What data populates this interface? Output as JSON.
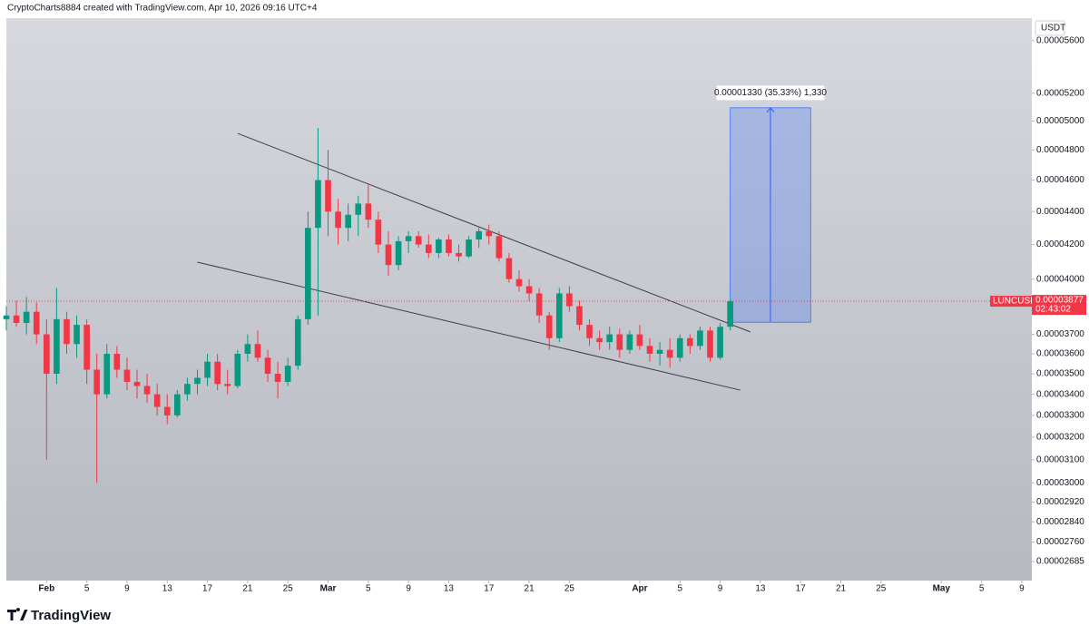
{
  "chart_data": {
    "type": "candlestick",
    "header": "CryptoCharts8884 created with TradingView.com, Apr 10, 2026 09:16 UTC+4",
    "currency": "USDT",
    "symbol": "LUNCUSDT",
    "countdown": "02:43:02",
    "brand": "TradingView",
    "up_color": "#089981",
    "down_color": "#f23645",
    "log": true,
    "ylim": [
      2.614e-05,
      5.781e-05
    ],
    "yticks": [
      {
        "value": 5.6e-05,
        "label": "0.00005600"
      },
      {
        "value": 5.2e-05,
        "label": "0.00005200"
      },
      {
        "value": 5e-05,
        "label": "0.00005000"
      },
      {
        "value": 4.8e-05,
        "label": "0.00004800"
      },
      {
        "value": 4.6e-05,
        "label": "0.00004600"
      },
      {
        "value": 4.4e-05,
        "label": "0.00004400"
      },
      {
        "value": 4.2e-05,
        "label": "0.00004200"
      },
      {
        "value": 4e-05,
        "label": "0.00004000"
      },
      {
        "value": 3.7e-05,
        "label": "0.00003700"
      },
      {
        "value": 3.6e-05,
        "label": "0.00003600"
      },
      {
        "value": 3.5e-05,
        "label": "0.00003500"
      },
      {
        "value": 3.4e-05,
        "label": "0.00003400"
      },
      {
        "value": 3.3e-05,
        "label": "0.00003300"
      },
      {
        "value": 3.2e-05,
        "label": "0.00003200"
      },
      {
        "value": 3.1e-05,
        "label": "0.00003100"
      },
      {
        "value": 3e-05,
        "label": "0.00003000"
      },
      {
        "value": 2.92e-05,
        "label": "0.00002920"
      },
      {
        "value": 2.84e-05,
        "label": "0.00002840"
      },
      {
        "value": 2.76e-05,
        "label": "0.00002760"
      },
      {
        "value": 2.685e-05,
        "label": "0.00002685"
      }
    ],
    "xlim": [
      "2026-01-28",
      "2026-05-10"
    ],
    "xticks": [
      {
        "value": "2026-02-01",
        "label": "Feb"
      },
      {
        "value": "2026-02-05",
        "label": "5"
      },
      {
        "value": "2026-02-09",
        "label": "9"
      },
      {
        "value": "2026-02-13",
        "label": "13"
      },
      {
        "value": "2026-02-17",
        "label": "17"
      },
      {
        "value": "2026-02-21",
        "label": "21"
      },
      {
        "value": "2026-02-25",
        "label": "25"
      },
      {
        "value": "2026-03-01",
        "label": "Mar"
      },
      {
        "value": "2026-03-05",
        "label": "5"
      },
      {
        "value": "2026-03-09",
        "label": "9"
      },
      {
        "value": "2026-03-13",
        "label": "13"
      },
      {
        "value": "2026-03-17",
        "label": "17"
      },
      {
        "value": "2026-03-21",
        "label": "21"
      },
      {
        "value": "2026-03-25",
        "label": "25"
      },
      {
        "value": "2026-04-01",
        "label": "Apr"
      },
      {
        "value": "2026-04-05",
        "label": "5"
      },
      {
        "value": "2026-04-09",
        "label": "9"
      },
      {
        "value": "2026-04-13",
        "label": "13"
      },
      {
        "value": "2026-04-17",
        "label": "17"
      },
      {
        "value": "2026-04-21",
        "label": "21"
      },
      {
        "value": "2026-04-25",
        "label": "25"
      },
      {
        "value": "2026-05-01",
        "label": "May"
      },
      {
        "value": "2026-05-05",
        "label": "5"
      },
      {
        "value": "2026-05-09",
        "label": "9"
      }
    ],
    "x": [
      "2026-01-28",
      "2026-01-29",
      "2026-01-30",
      "2026-01-31",
      "2026-02-01",
      "2026-02-02",
      "2026-02-03",
      "2026-02-04",
      "2026-02-05",
      "2026-02-06",
      "2026-02-07",
      "2026-02-08",
      "2026-02-09",
      "2026-02-10",
      "2026-02-11",
      "2026-02-12",
      "2026-02-13",
      "2026-02-14",
      "2026-02-15",
      "2026-02-16",
      "2026-02-17",
      "2026-02-18",
      "2026-02-19",
      "2026-02-20",
      "2026-02-21",
      "2026-02-22",
      "2026-02-23",
      "2026-02-24",
      "2026-02-25",
      "2026-02-26",
      "2026-02-27",
      "2026-02-28",
      "2026-03-01",
      "2026-03-02",
      "2026-03-03",
      "2026-03-04",
      "2026-03-05",
      "2026-03-06",
      "2026-03-07",
      "2026-03-08",
      "2026-03-09",
      "2026-03-10",
      "2026-03-11",
      "2026-03-12",
      "2026-03-13",
      "2026-03-14",
      "2026-03-15",
      "2026-03-16",
      "2026-03-17",
      "2026-03-18",
      "2026-03-19",
      "2026-03-20",
      "2026-03-21",
      "2026-03-22",
      "2026-03-23",
      "2026-03-24",
      "2026-03-25",
      "2026-03-26",
      "2026-03-27",
      "2026-03-28",
      "2026-03-29",
      "2026-03-30",
      "2026-03-31",
      "2026-04-01",
      "2026-04-02",
      "2026-04-03",
      "2026-04-04",
      "2026-04-05",
      "2026-04-06",
      "2026-04-07",
      "2026-04-08",
      "2026-04-09",
      "2026-04-10"
    ],
    "open": [
      3.78e-05,
      3.8e-05,
      3.76e-05,
      3.82e-05,
      3.7e-05,
      3.5e-05,
      3.78e-05,
      3.65e-05,
      3.75e-05,
      3.52e-05,
      3.4e-05,
      3.6e-05,
      3.52e-05,
      3.46e-05,
      3.44e-05,
      3.4e-05,
      3.34e-05,
      3.3e-05,
      3.4e-05,
      3.45e-05,
      3.48e-05,
      3.56e-05,
      3.45e-05,
      3.44e-05,
      3.6e-05,
      3.65e-05,
      3.58e-05,
      3.5e-05,
      3.46e-05,
      3.54e-05,
      3.78e-05,
      4.3e-05,
      4.6e-05,
      4.4e-05,
      4.3e-05,
      4.38e-05,
      4.45e-05,
      4.35e-05,
      4.2e-05,
      4.08e-05,
      4.22e-05,
      4.25e-05,
      4.2e-05,
      4.15e-05,
      4.23e-05,
      4.15e-05,
      4.13e-05,
      4.23e-05,
      4.28e-05,
      4.25e-05,
      4.12e-05,
      4e-05,
      3.96e-05,
      3.92e-05,
      3.8e-05,
      3.68e-05,
      3.92e-05,
      3.85e-05,
      3.75e-05,
      3.68e-05,
      3.66e-05,
      3.7e-05,
      3.62e-05,
      3.7e-05,
      3.64e-05,
      3.6e-05,
      3.62e-05,
      3.58e-05,
      3.68e-05,
      3.64e-05,
      3.72e-05,
      3.58e-05,
      3.74e-05
    ],
    "high": [
      3.85e-05,
      3.88e-05,
      3.9e-05,
      3.87e-05,
      3.78e-05,
      3.95e-05,
      3.82e-05,
      3.8e-05,
      3.78e-05,
      3.6e-05,
      3.65e-05,
      3.64e-05,
      3.58e-05,
      3.52e-05,
      3.5e-05,
      3.45e-05,
      3.4e-05,
      3.42e-05,
      3.48e-05,
      3.52e-05,
      3.6e-05,
      3.6e-05,
      3.52e-05,
      3.62e-05,
      3.7e-05,
      3.72e-05,
      3.62e-05,
      3.56e-05,
      3.58e-05,
      3.8e-05,
      4.4e-05,
      4.95e-05,
      4.8e-05,
      4.48e-05,
      4.45e-05,
      4.5e-05,
      4.58e-05,
      4.4e-05,
      4.28e-05,
      4.25e-05,
      4.28e-05,
      4.28e-05,
      4.26e-05,
      4.24e-05,
      4.26e-05,
      4.2e-05,
      4.25e-05,
      4.3e-05,
      4.32e-05,
      4.28e-05,
      4.15e-05,
      4.05e-05,
      4e-05,
      3.95e-05,
      3.82e-05,
      3.95e-05,
      3.96e-05,
      3.88e-05,
      3.78e-05,
      3.72e-05,
      3.74e-05,
      3.73e-05,
      3.72e-05,
      3.75e-05,
      3.68e-05,
      3.66e-05,
      3.68e-05,
      3.7e-05,
      3.7e-05,
      3.74e-05,
      3.74e-05,
      3.76e-05,
      3.89e-05
    ],
    "low": [
      3.72e-05,
      3.74e-05,
      3.7e-05,
      3.65e-05,
      3.1e-05,
      3.45e-05,
      3.6e-05,
      3.58e-05,
      3.45e-05,
      3e-05,
      3.38e-05,
      3.48e-05,
      3.42e-05,
      3.38e-05,
      3.36e-05,
      3.3e-05,
      3.26e-05,
      3.29e-05,
      3.37e-05,
      3.4e-05,
      3.44e-05,
      3.42e-05,
      3.4e-05,
      3.43e-05,
      3.56e-05,
      3.56e-05,
      3.46e-05,
      3.38e-05,
      3.44e-05,
      3.52e-05,
      3.75e-05,
      3.8e-05,
      4.25e-05,
      4.2e-05,
      4.22e-05,
      4.25e-05,
      4.3e-05,
      4.15e-05,
      4.02e-05,
      4.05e-05,
      4.15e-05,
      4.18e-05,
      4.12e-05,
      4.12e-05,
      4.13e-05,
      4.1e-05,
      4.12e-05,
      4.18e-05,
      4.2e-05,
      4.1e-05,
      3.98e-05,
      3.93e-05,
      3.88e-05,
      3.76e-05,
      3.62e-05,
      3.66e-05,
      3.82e-05,
      3.72e-05,
      3.64e-05,
      3.62e-05,
      3.62e-05,
      3.58e-05,
      3.6e-05,
      3.62e-05,
      3.56e-05,
      3.54e-05,
      3.53e-05,
      3.56e-05,
      3.6e-05,
      3.62e-05,
      3.56e-05,
      3.57e-05,
      3.72e-05
    ],
    "close": [
      3.8e-05,
      3.76e-05,
      3.82e-05,
      3.7e-05,
      3.5e-05,
      3.78e-05,
      3.65e-05,
      3.75e-05,
      3.52e-05,
      3.4e-05,
      3.6e-05,
      3.52e-05,
      3.46e-05,
      3.44e-05,
      3.4e-05,
      3.34e-05,
      3.3e-05,
      3.4e-05,
      3.45e-05,
      3.48e-05,
      3.56e-05,
      3.45e-05,
      3.44e-05,
      3.6e-05,
      3.65e-05,
      3.58e-05,
      3.5e-05,
      3.46e-05,
      3.54e-05,
      3.78e-05,
      4.3e-05,
      4.6e-05,
      4.4e-05,
      4.3e-05,
      4.38e-05,
      4.45e-05,
      4.35e-05,
      4.2e-05,
      4.08e-05,
      4.22e-05,
      4.25e-05,
      4.2e-05,
      4.15e-05,
      4.23e-05,
      4.15e-05,
      4.13e-05,
      4.23e-05,
      4.28e-05,
      4.25e-05,
      4.12e-05,
      4e-05,
      3.96e-05,
      3.92e-05,
      3.8e-05,
      3.68e-05,
      3.92e-05,
      3.85e-05,
      3.75e-05,
      3.68e-05,
      3.66e-05,
      3.7e-05,
      3.62e-05,
      3.7e-05,
      3.64e-05,
      3.6e-05,
      3.62e-05,
      3.58e-05,
      3.68e-05,
      3.64e-05,
      3.72e-05,
      3.58e-05,
      3.74e-05,
      3.877e-05
    ],
    "trendlines": [
      {
        "x": [
          "2026-02-20",
          "2026-04-12"
        ],
        "y": [
          4.913e-05,
          3.713e-05
        ]
      },
      {
        "x": [
          "2026-02-16",
          "2026-04-11"
        ],
        "y": [
          4.097e-05,
          3.42e-05
        ]
      }
    ],
    "measure": {
      "label": "0.00001330 (35.33%) 1,330",
      "x": [
        "2026-04-10",
        "2026-04-18"
      ],
      "y": [
        3.764e-05,
        5.094e-05
      ]
    }
  }
}
